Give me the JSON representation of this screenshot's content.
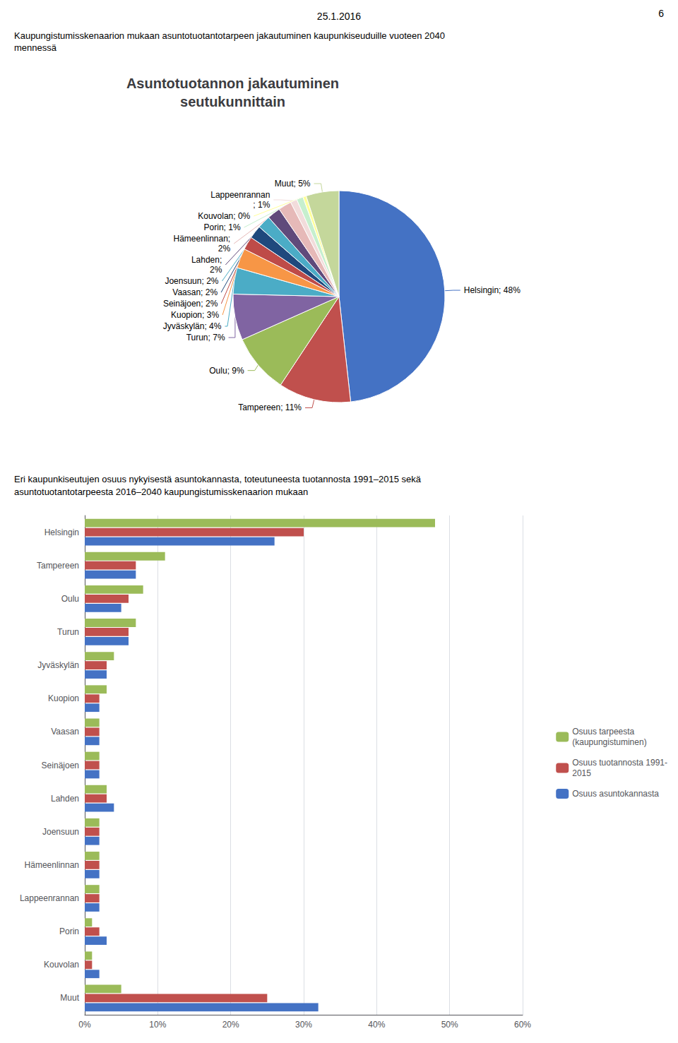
{
  "chart_data": [
    {
      "type": "pie",
      "title": "Asuntotuotannon jakautuminen\nseutukunnittain",
      "annotations": [
        "6",
        "25.1.2016",
        "Kaupungistumisskenaarion mukaan asuntotuotantotarpeen jakautuminen kaupunkiseuduille vuoteen 2040",
        "mennessä"
      ],
      "categories": [
        "Helsingin",
        "Tampereen",
        "Oulu",
        "Turun",
        "Jyväskylän",
        "Kuopion",
        "Seinäjoen",
        "Vaasan",
        "Joensuun",
        "Lahden",
        "Hämeenlinnan",
        "Lappeenrannan",
        "Porin",
        "Kouvolan",
        "Muut"
      ],
      "values": [
        48,
        11,
        9,
        7,
        4,
        3,
        2,
        2,
        2,
        2,
        2,
        1,
        1,
        0.5,
        5
      ],
      "value_labels": [
        "Helsingin; 48%",
        "Tampereen; 11%",
        "Oulu; 9%",
        "Turun; 7%",
        "Jyväskylän; 4%",
        "Kuopion; 3%",
        "Seinäjoen; 2%",
        "Vaasan; 2%",
        "Joensuun; 2%",
        "Lahden;\n2%",
        "Hämeenlinnan;\n2%",
        "Lappeenrannan\n; 1%",
        "Porin; 1%",
        "Kouvolan; 0%",
        "Muut; 5%"
      ],
      "colors": [
        "#4472C4",
        "#C0504D",
        "#9BBB59",
        "#8064A2",
        "#4BACC6",
        "#F79646",
        "#BE4B48",
        "#1F497D",
        "#4BACC6",
        "#604A7B",
        "#E6B9B8",
        "#F2DCDB",
        "#C6EFCE",
        "#FFFF99",
        "#C4D79B"
      ],
      "data_labels": true
    },
    {
      "type": "bar",
      "orientation": "horizontal",
      "annotations": [
        "Eri kaupunkiseutujen osuus nykyisestä asuntokannasta, toteutuneesta tuotannosta 1991–2015 sekä",
        "asuntotuotantotarpeesta 2016–2040 kaupungistumisskenaarion mukaan"
      ],
      "categories": [
        "Helsingin",
        "Tampereen",
        "Oulu",
        "Turun",
        "Jyväskylän",
        "Kuopion",
        "Vaasan",
        "Seinäjoen",
        "Lahden",
        "Joensuun",
        "Hämeenlinnan",
        "Lappeenrannan",
        "Porin",
        "Kouvolan",
        "Muut"
      ],
      "series": [
        {
          "name": "Osuus tarpeesta\n(kaupungistuminen)",
          "color": "#9BBB59",
          "values": [
            48,
            11,
            8,
            7,
            4,
            3,
            2,
            2,
            3,
            2,
            2,
            2,
            1,
            1,
            5
          ]
        },
        {
          "name": "Osuus tuotannosta 1991-\n2015",
          "color": "#C0504D",
          "values": [
            30,
            7,
            6,
            6,
            3,
            2,
            2,
            2,
            3,
            2,
            2,
            2,
            2,
            1,
            25
          ]
        },
        {
          "name": "Osuus asuntokannasta",
          "color": "#4472C4",
          "values": [
            26,
            7,
            5,
            6,
            3,
            2,
            2,
            2,
            4,
            2,
            2,
            2,
            3,
            2,
            32
          ]
        }
      ],
      "xlim": [
        0,
        60
      ],
      "xticks": [
        {
          "value": 0,
          "label": "0%"
        },
        {
          "value": 10,
          "label": "10%"
        },
        {
          "value": 20,
          "label": "20%"
        },
        {
          "value": 30,
          "label": "30%"
        },
        {
          "value": 40,
          "label": "40%"
        },
        {
          "value": 50,
          "label": "50%"
        },
        {
          "value": 60,
          "label": "60%"
        }
      ],
      "grid": true,
      "legend": "right"
    }
  ]
}
